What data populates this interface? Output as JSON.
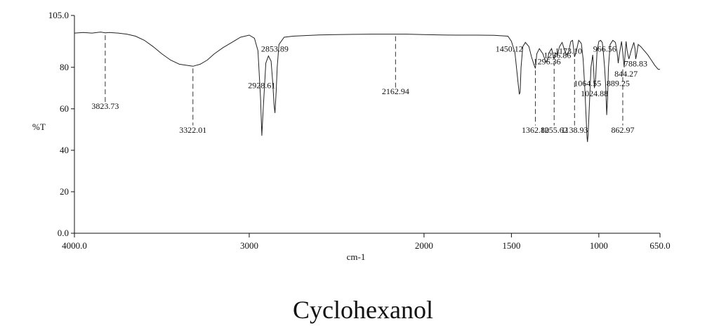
{
  "caption": "Cyclohexanol",
  "chart_data": {
    "type": "line",
    "title": "",
    "xlabel": "cm-1",
    "ylabel": "%T",
    "xlim": [
      4000,
      650
    ],
    "ylim": [
      0,
      105
    ],
    "x_reversed": true,
    "grid": false,
    "x_ticks": [
      {
        "value": 4000,
        "label": "4000.0"
      },
      {
        "value": 3000,
        "label": "3000"
      },
      {
        "value": 2000,
        "label": "2000"
      },
      {
        "value": 1500,
        "label": "1500"
      },
      {
        "value": 1000,
        "label": "1000"
      },
      {
        "value": 650,
        "label": "650.0"
      }
    ],
    "y_ticks": [
      {
        "value": 105,
        "label": "105.0"
      },
      {
        "value": 80,
        "label": "80"
      },
      {
        "value": 60,
        "label": "60"
      },
      {
        "value": 40,
        "label": "40"
      },
      {
        "value": 20,
        "label": "20"
      },
      {
        "value": 0,
        "label": "0.0"
      }
    ],
    "series": [
      {
        "x": [
          4000,
          3950,
          3900,
          3850,
          3823,
          3800,
          3750,
          3700,
          3650,
          3600,
          3550,
          3500,
          3450,
          3400,
          3360,
          3322,
          3280,
          3240,
          3200,
          3150,
          3100,
          3050,
          3000,
          2970,
          2950,
          2935,
          2928,
          2920,
          2905,
          2890,
          2875,
          2865,
          2858,
          2853,
          2846,
          2840,
          2830,
          2800,
          2750,
          2700,
          2600,
          2500,
          2400,
          2300,
          2200,
          2163,
          2100,
          2000,
          1900,
          1800,
          1700,
          1600,
          1520,
          1500,
          1480,
          1465,
          1455,
          1450,
          1445,
          1435,
          1420,
          1400,
          1385,
          1370,
          1363,
          1355,
          1340,
          1320,
          1305,
          1297,
          1285,
          1270,
          1262,
          1256,
          1248,
          1237,
          1225,
          1210,
          1195,
          1185,
          1173,
          1160,
          1150,
          1139,
          1128,
          1115,
          1100,
          1090,
          1080,
          1072,
          1068,
          1065,
          1061,
          1055,
          1045,
          1035,
          1030,
          1025,
          1018,
          1010,
          1000,
          990,
          980,
          975,
          967,
          960,
          955,
          950,
          945,
          935,
          920,
          905,
          895,
          889,
          883,
          870,
          863,
          855,
          850,
          844,
          838,
          828,
          815,
          800,
          793,
          789,
          784,
          775,
          760,
          740,
          720,
          700,
          680,
          660,
          650
        ],
        "values": [
          96.5,
          96.8,
          96.5,
          97.0,
          96.6,
          96.8,
          96.5,
          96.0,
          95.0,
          93.0,
          90.0,
          86.5,
          83.5,
          81.5,
          81.0,
          80.5,
          81.5,
          83.5,
          86.5,
          89.5,
          92.0,
          94.5,
          95.5,
          94.0,
          88.0,
          65.0,
          47.0,
          60.0,
          82.0,
          85.5,
          83.0,
          72.0,
          62.0,
          58.0,
          68.0,
          80.0,
          91.0,
          94.5,
          95.0,
          95.2,
          95.6,
          95.8,
          95.9,
          96.0,
          96.0,
          96.0,
          96.0,
          95.8,
          95.6,
          95.5,
          95.5,
          95.4,
          95.0,
          92.5,
          87.0,
          75.0,
          67.0,
          68.0,
          80.0,
          90.0,
          92.0,
          90.0,
          85.0,
          81.0,
          79.5,
          86.5,
          89.0,
          86.5,
          83.0,
          82.5,
          87.0,
          89.0,
          86.0,
          84.0,
          87.0,
          86.0,
          90.0,
          92.0,
          88.0,
          86.0,
          87.5,
          92.5,
          93.0,
          85.0,
          88.0,
          93.0,
          91.5,
          84.0,
          70.0,
          55.0,
          47.0,
          44.0,
          48.0,
          60.0,
          80.0,
          86.0,
          80.0,
          70.0,
          75.0,
          88.0,
          92.5,
          93.0,
          92.0,
          88.0,
          80.0,
          70.0,
          57.0,
          65.0,
          80.0,
          91.0,
          93.0,
          92.0,
          87.0,
          82.0,
          86.0,
          92.5,
          87.0,
          80.0,
          86.0,
          92.5,
          88.0,
          84.0,
          88.0,
          92.0,
          89.0,
          84.0,
          86.0,
          91.0,
          90.0,
          88.0,
          86.0,
          83.5,
          81.0,
          79.0,
          79.0
        ]
      }
    ],
    "annotations": [
      {
        "x": 3823.73,
        "label": "3823.73",
        "y_start": 96.5,
        "y_end": 62,
        "label_y": 60.0,
        "label_side": "below"
      },
      {
        "x": 3322.01,
        "label": "3322.01",
        "y_start": 80.5,
        "y_end": 52,
        "label_y": 48.5,
        "label_side": "below"
      },
      {
        "x": 2928.61,
        "label": "2928.61",
        "label_y": 70.0,
        "label_side": "text"
      },
      {
        "x": 2853.89,
        "label": "2853.89",
        "label_y": 87.5,
        "label_side": "text"
      },
      {
        "x": 2162.94,
        "label": "2162.94",
        "y_start": 96.0,
        "y_end": 70,
        "label_y": 67.0,
        "label_side": "below"
      },
      {
        "x": 1450.12,
        "label": "1450.12",
        "label_y": 87.5,
        "label_side": "text-left"
      },
      {
        "x": 1362.8,
        "label": "1362.80",
        "y_start": 79.5,
        "y_end": 52,
        "label_y": 48.5,
        "label_side": "below"
      },
      {
        "x": 1296.36,
        "label": "1296.36",
        "label_y": 81.5,
        "label_side": "text"
      },
      {
        "x": 1255.62,
        "label": "1255.62",
        "y_start": 84.0,
        "y_end": 52,
        "label_y": 48.5,
        "label_side": "below"
      },
      {
        "x": 1236.86,
        "label": "1236.86",
        "label_y": 84.5,
        "label_side": "text"
      },
      {
        "x": 1173.1,
        "label": "1173.10",
        "label_y": 86.5,
        "label_side": "text"
      },
      {
        "x": 1138.93,
        "label": "1138.93",
        "y_start": 85.0,
        "y_end": 52,
        "label_y": 48.5,
        "label_side": "below"
      },
      {
        "x": 1064.55,
        "label": "1064.55",
        "label_y": 71.0,
        "label_side": "text"
      },
      {
        "x": 1024.88,
        "label": "1024.88",
        "label_y": 66.0,
        "label_side": "text"
      },
      {
        "x": 966.56,
        "label": "966.56",
        "label_y": 87.5,
        "label_side": "text"
      },
      {
        "x": 889.25,
        "label": "889.25",
        "label_y": 71.0,
        "label_side": "text"
      },
      {
        "x": 862.97,
        "label": "862.97",
        "y_start": 80.0,
        "y_end": 52,
        "label_y": 48.5,
        "label_side": "below"
      },
      {
        "x": 844.27,
        "label": "844.27",
        "label_y": 75.5,
        "label_side": "text"
      },
      {
        "x": 788.83,
        "label": "788.83",
        "label_y": 80.5,
        "label_side": "text"
      }
    ]
  }
}
